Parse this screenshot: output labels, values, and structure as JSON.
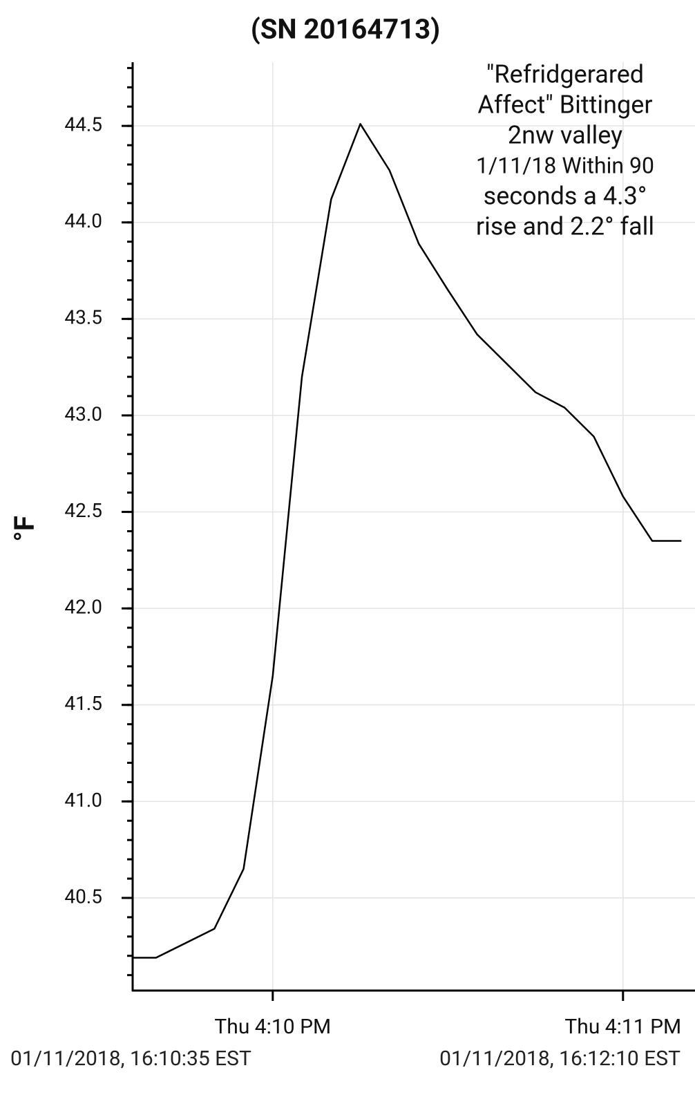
{
  "chart_data": {
    "type": "line",
    "title": "(SN 20164713)",
    "y_label": "°F",
    "annotation": [
      "\"Refridgerared",
      "Affect\" Bittinger",
      "2nw valley",
      "1/11/18 Within 90",
      "seconds a 4.3°",
      "rise and 2.2° fall"
    ],
    "x": [
      969.6,
      969.6667,
      969.8333,
      969.9167,
      970,
      970.0833,
      970.1667,
      970.25,
      970.3333,
      970.4167,
      970.5,
      970.5833,
      970.6667,
      970.75,
      970.8333,
      970.9167,
      971,
      971.0833,
      971.1667
    ],
    "series": [
      {
        "name": "Temperature",
        "color": "#000000",
        "values": [
          40.19,
          40.19,
          40.34,
          40.65,
          41.65,
          43.2,
          44.12,
          44.51,
          44.27,
          43.89,
          43.65,
          43.42,
          43.27,
          43.12,
          43.04,
          42.89,
          42.58,
          42.35,
          42.35
        ]
      }
    ],
    "xlim": [
      969.6,
      971.2
    ],
    "xticks": [
      {
        "value": 970,
        "label": "Thu 4:10 PM"
      },
      {
        "value": 971,
        "label": "Thu 4:11 PM"
      }
    ],
    "ylim": [
      40.02,
      44.83
    ],
    "yticks": [
      40.5,
      {
        "value": 41,
        "label": "41.0"
      },
      41.5,
      {
        "value": 42,
        "label": "42.0"
      },
      42.5,
      {
        "value": 43,
        "label": "43.0"
      },
      43.5,
      {
        "value": 44,
        "label": "44.0"
      },
      44.5
    ],
    "grid": true,
    "footer": [
      "01/11/2018, 16:10:35 EST",
      "01/11/2018, 16:12:10 EST"
    ]
  }
}
